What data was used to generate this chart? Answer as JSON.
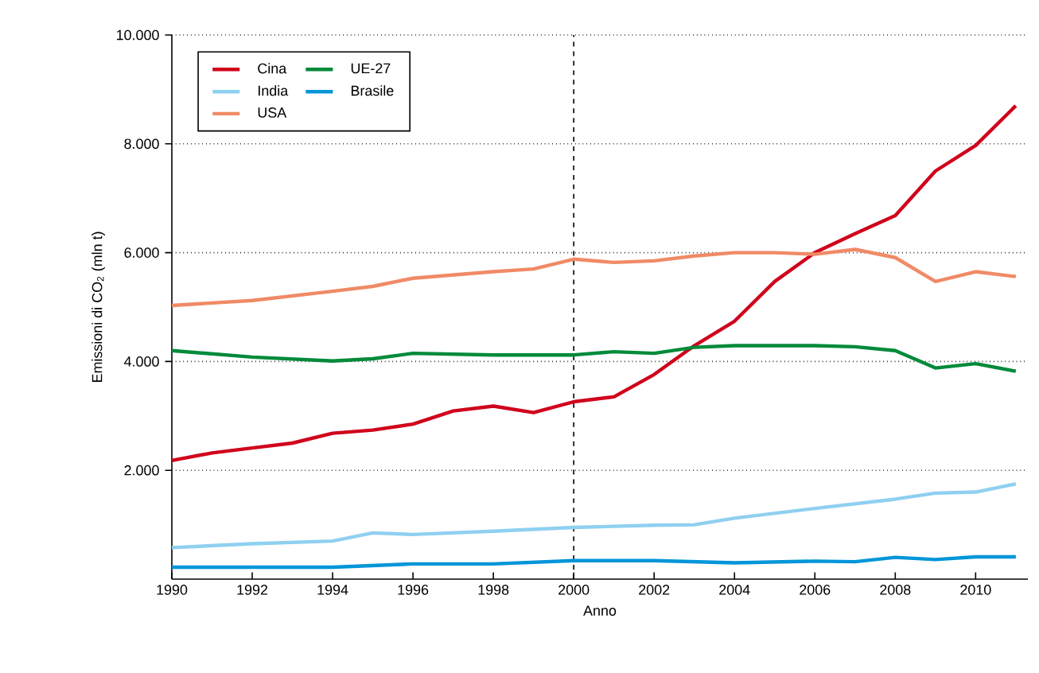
{
  "chart_data": {
    "type": "line",
    "xlabel": "Anno",
    "ylabel": "Emissioni di CO$_{2}$ (mln t)",
    "xlim": [
      1990,
      2011.3
    ],
    "ylim": [
      0,
      10000
    ],
    "xticks": [
      1990,
      1992,
      1994,
      1996,
      1998,
      2000,
      2002,
      2004,
      2006,
      2008,
      2010
    ],
    "yticks": [
      {
        "value": 2000,
        "label": "2.000"
      },
      {
        "value": 4000,
        "label": "4.000"
      },
      {
        "value": 6000,
        "label": "6.000"
      },
      {
        "value": 8000,
        "label": "8.000"
      },
      {
        "value": 10000,
        "label": "10.000"
      }
    ],
    "grid": "y",
    "legend": "top left",
    "line_style": "solid",
    "marker": "none",
    "ref_lines": [
      {
        "axis": "x",
        "value": 2000,
        "line_style": "dashed",
        "color": "#000000"
      }
    ],
    "series": [
      {
        "name": "Cina",
        "color": "#d0021b",
        "x": [
          1990,
          1991,
          1992,
          1993,
          1994,
          1995,
          1996,
          1997,
          1998,
          1999,
          2000,
          2001,
          2002,
          2003,
          2004,
          2005,
          2006,
          2007,
          2008,
          2009,
          2010,
          2011
        ],
        "values": [
          2180,
          2320,
          2410,
          2500,
          2680,
          2740,
          2850,
          3090,
          3180,
          3060,
          3260,
          3350,
          3760,
          4290,
          4740,
          5470,
          6000,
          6350,
          6680,
          7500,
          7970,
          8700
        ]
      },
      {
        "name": "UE-27",
        "color": "#008a3a",
        "x": [
          1990,
          1992,
          1994,
          1995,
          1996,
          1998,
          2000,
          2001,
          2002,
          2003,
          2004,
          2006,
          2007,
          2008,
          2009,
          2010,
          2011
        ],
        "values": [
          4200,
          4080,
          4010,
          4050,
          4150,
          4120,
          4120,
          4180,
          4150,
          4260,
          4290,
          4290,
          4270,
          4200,
          3880,
          3960,
          3820
        ]
      },
      {
        "name": "India",
        "color": "#8fd0f0",
        "x": [
          1990,
          1992,
          1994,
          1995,
          1996,
          1998,
          2000,
          2002,
          2003,
          2004,
          2006,
          2008,
          2009,
          2010,
          2011
        ],
        "values": [
          580,
          650,
          700,
          850,
          820,
          880,
          950,
          990,
          1000,
          1120,
          1300,
          1470,
          1580,
          1600,
          1750
        ]
      },
      {
        "name": "Brasile",
        "color": "#0095d9",
        "x": [
          1990,
          1994,
          1996,
          1998,
          2000,
          2002,
          2004,
          2006,
          2007,
          2008,
          2009,
          2010,
          2011
        ],
        "values": [
          220,
          220,
          280,
          280,
          340,
          340,
          300,
          330,
          320,
          400,
          360,
          410,
          410
        ]
      },
      {
        "name": "USA",
        "color": "#f08a66",
        "x": [
          1990,
          1992,
          1994,
          1995,
          1996,
          1998,
          1999,
          2000,
          2001,
          2002,
          2003,
          2004,
          2005,
          2006,
          2007,
          2008,
          2009,
          2010,
          2011
        ],
        "values": [
          5030,
          5120,
          5290,
          5380,
          5530,
          5650,
          5700,
          5880,
          5820,
          5850,
          5940,
          6000,
          6000,
          5970,
          6060,
          5910,
          5470,
          5650,
          5560
        ]
      }
    ]
  }
}
